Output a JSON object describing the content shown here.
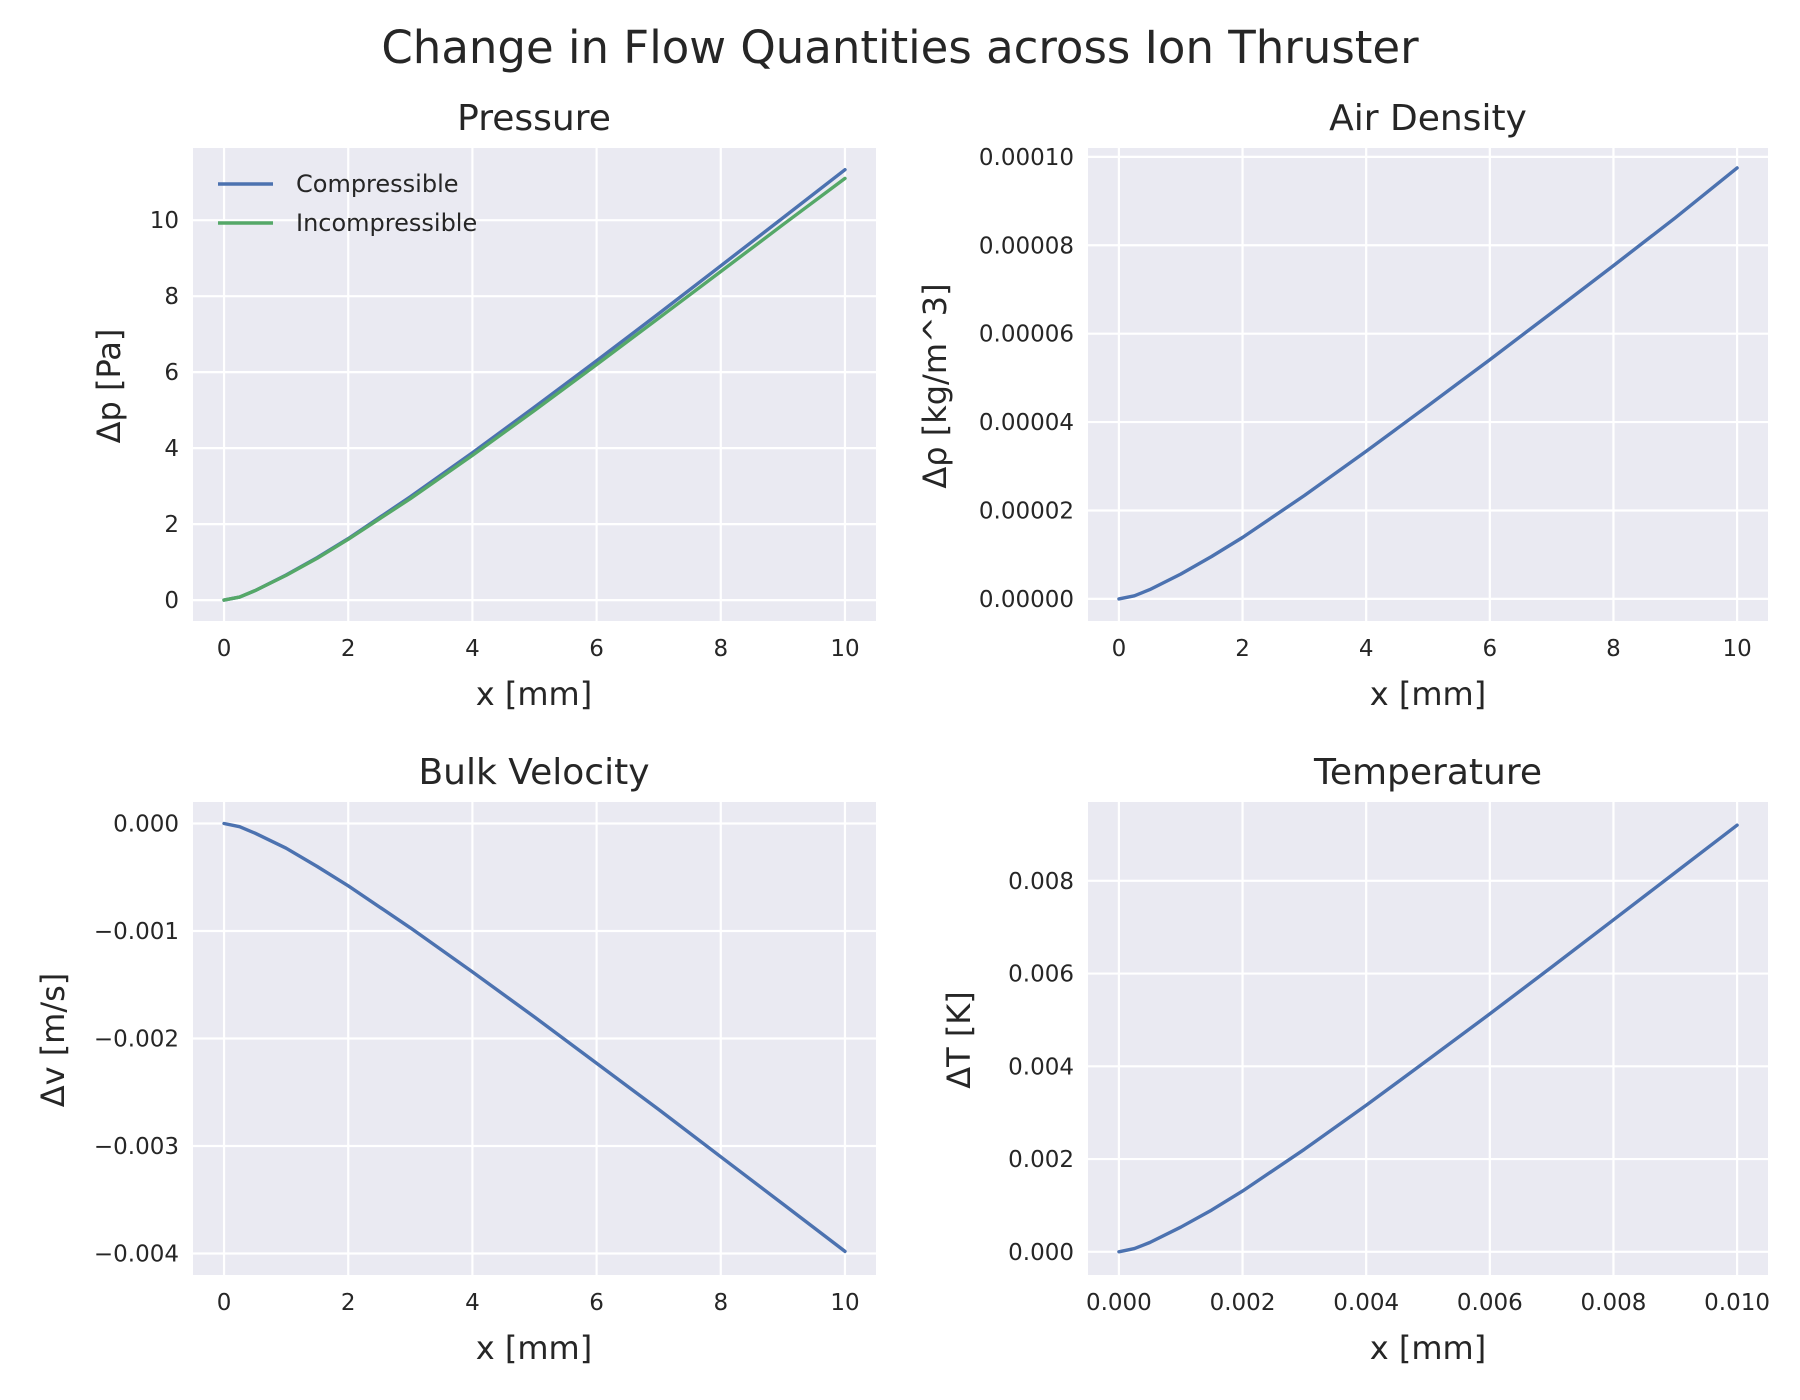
{
  "figure": {
    "suptitle": "Change in Flow Quantities across Ion Thruster"
  },
  "chart_data": [
    {
      "type": "line",
      "title": "Pressure",
      "xlabel": "x [mm]",
      "ylabel": "Δp [Pa]",
      "xlim": [
        -0.5,
        10.5
      ],
      "ylim": [
        -0.55,
        11.9
      ],
      "xticks": [
        0,
        2,
        4,
        6,
        8,
        10
      ],
      "xtick_labels": [
        "0",
        "2",
        "4",
        "6",
        "8",
        "10"
      ],
      "yticks": [
        0,
        2,
        4,
        6,
        8,
        10
      ],
      "ytick_labels": [
        "0",
        "2",
        "4",
        "6",
        "8",
        "10"
      ],
      "grid": true,
      "legend": "top-left",
      "series": [
        {
          "name": "Compressible",
          "color": "#4c72b0",
          "x": [
            0,
            0.25,
            0.5,
            1,
            1.5,
            2,
            3,
            4,
            5,
            6,
            7,
            8,
            9,
            10
          ],
          "y": [
            0,
            0.08,
            0.25,
            0.66,
            1.12,
            1.62,
            2.72,
            3.88,
            5.08,
            6.3,
            7.54,
            8.8,
            10.06,
            11.33
          ]
        },
        {
          "name": "Incompressible",
          "color": "#55a868",
          "x": [
            0,
            0.25,
            0.5,
            1,
            1.5,
            2,
            3,
            4,
            5,
            6,
            7,
            8,
            9,
            10
          ],
          "y": [
            0,
            0.08,
            0.25,
            0.65,
            1.1,
            1.6,
            2.67,
            3.81,
            4.99,
            6.2,
            7.42,
            8.65,
            9.88,
            11.1
          ]
        }
      ]
    },
    {
      "type": "line",
      "title": "Air Density",
      "xlabel": "x [mm]",
      "ylabel": "Δρ [kg/m^3]",
      "xlim": [
        -0.5,
        10.5
      ],
      "ylim": [
        -5e-06,
        0.000102
      ],
      "xticks": [
        0,
        2,
        4,
        6,
        8,
        10
      ],
      "xtick_labels": [
        "0",
        "2",
        "4",
        "6",
        "8",
        "10"
      ],
      "yticks": [
        0,
        2e-05,
        4e-05,
        6e-05,
        8e-05,
        0.0001
      ],
      "ytick_labels": [
        "0.00000",
        "0.00002",
        "0.00004",
        "0.00006",
        "0.00008",
        "0.00010"
      ],
      "grid": true,
      "series": [
        {
          "color": "#4c72b0",
          "x": [
            0,
            0.25,
            0.5,
            1,
            1.5,
            2,
            3,
            4,
            5,
            6,
            7,
            8,
            9,
            10
          ],
          "y": [
            0,
            7e-07,
            2.1e-06,
            5.6e-06,
            9.6e-06,
            1.39e-05,
            2.34e-05,
            3.34e-05,
            4.37e-05,
            5.41e-05,
            6.47e-05,
            7.54e-05,
            8.62e-05,
            9.75e-05
          ]
        }
      ]
    },
    {
      "type": "line",
      "title": "Bulk Velocity",
      "xlabel": "x [mm]",
      "ylabel": "Δv [m/s]",
      "xlim": [
        -0.5,
        10.5
      ],
      "ylim": [
        -0.0042,
        0.0002
      ],
      "xticks": [
        0,
        2,
        4,
        6,
        8,
        10
      ],
      "xtick_labels": [
        "0",
        "2",
        "4",
        "6",
        "8",
        "10"
      ],
      "yticks": [
        0,
        -0.001,
        -0.002,
        -0.003,
        -0.004
      ],
      "ytick_labels": [
        "0.000",
        "−0.001",
        "−0.002",
        "−0.003",
        "−0.004"
      ],
      "grid": true,
      "series": [
        {
          "color": "#4c72b0",
          "x": [
            0,
            0.25,
            0.5,
            1,
            1.5,
            2,
            3,
            4,
            5,
            6,
            7,
            8,
            9,
            10
          ],
          "y": [
            0,
            -3e-05,
            -9e-05,
            -0.00023,
            -0.0004,
            -0.00058,
            -0.00097,
            -0.00138,
            -0.0018,
            -0.00223,
            -0.00266,
            -0.0031,
            -0.00354,
            -0.00398
          ]
        }
      ]
    },
    {
      "type": "line",
      "title": "Temperature",
      "xlabel": "x [mm]",
      "ylabel": "ΔT [K]",
      "xlim": [
        -0.0005,
        0.0105
      ],
      "ylim": [
        -0.0005,
        0.0097
      ],
      "xticks": [
        0,
        0.002,
        0.004,
        0.006,
        0.008,
        0.01
      ],
      "xtick_labels": [
        "0.000",
        "0.002",
        "0.004",
        "0.006",
        "0.008",
        "0.010"
      ],
      "yticks": [
        0,
        0.002,
        0.004,
        0.006,
        0.008
      ],
      "ytick_labels": [
        "0.000",
        "0.002",
        "0.004",
        "0.006",
        "0.008"
      ],
      "grid": true,
      "series": [
        {
          "color": "#4c72b0",
          "x": [
            0,
            0.00025,
            0.0005,
            0.001,
            0.0015,
            0.002,
            0.003,
            0.004,
            0.005,
            0.006,
            0.007,
            0.008,
            0.009,
            0.01
          ],
          "y": [
            0,
            7e-05,
            0.0002,
            0.00053,
            0.0009,
            0.00131,
            0.00221,
            0.00316,
            0.00414,
            0.00513,
            0.00614,
            0.00716,
            0.00818,
            0.0092
          ]
        }
      ]
    }
  ]
}
